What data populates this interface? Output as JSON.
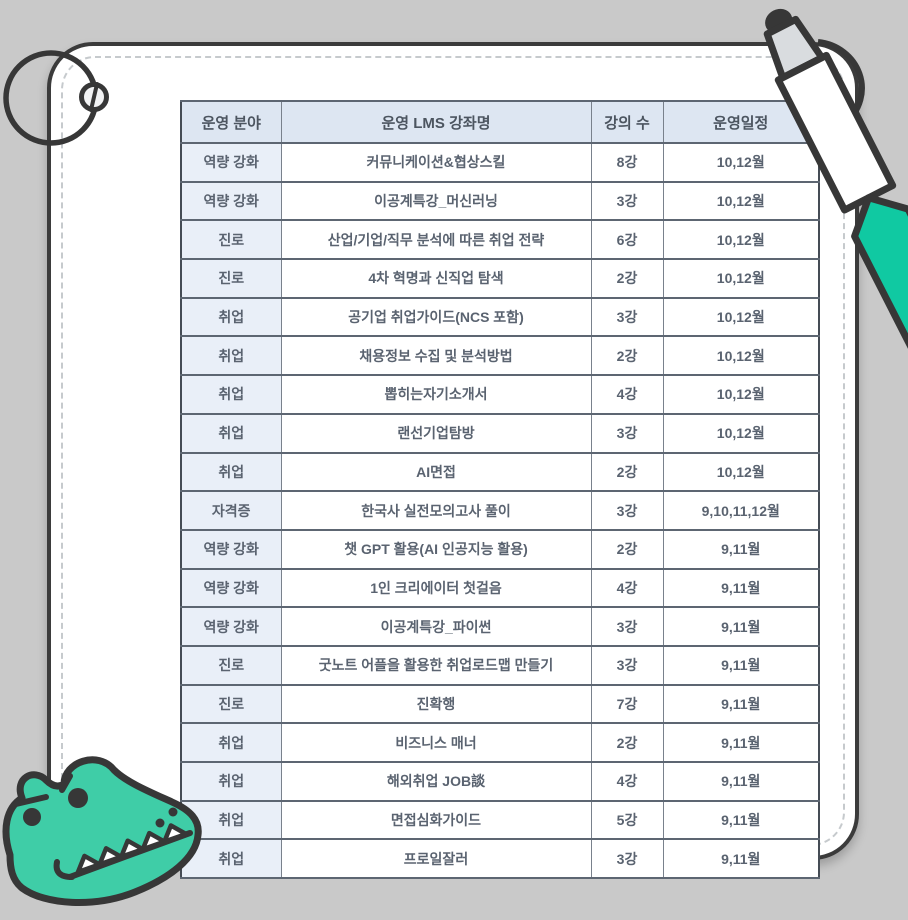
{
  "table": {
    "headers": [
      "운영 분야",
      "운영 LMS 강좌명",
      "강의 수",
      "운영일정"
    ],
    "rows": [
      {
        "category": "역량 강화",
        "course": "커뮤니케이션&협상스킬",
        "lectures": "8강",
        "schedule": "10,12월"
      },
      {
        "category": "역량 강화",
        "course": "이공계특강_머신러닝",
        "lectures": "3강",
        "schedule": "10,12월"
      },
      {
        "category": "진로",
        "course": "산업/기업/직무 분석에 따른 취업 전략",
        "lectures": "6강",
        "schedule": "10,12월"
      },
      {
        "category": "진로",
        "course": "4차 혁명과 신직업 탐색",
        "lectures": "2강",
        "schedule": "10,12월"
      },
      {
        "category": "취업",
        "course": "공기업 취업가이드(NCS 포함)",
        "lectures": "3강",
        "schedule": "10,12월"
      },
      {
        "category": "취업",
        "course": "채용정보 수집 및 분석방법",
        "lectures": "2강",
        "schedule": "10,12월"
      },
      {
        "category": "취업",
        "course": "뽑히는자기소개서",
        "lectures": "4강",
        "schedule": "10,12월"
      },
      {
        "category": "취업",
        "course": "랜선기업탐방",
        "lectures": "3강",
        "schedule": "10,12월"
      },
      {
        "category": "취업",
        "course": "AI면접",
        "lectures": "2강",
        "schedule": "10,12월"
      },
      {
        "category": "자격증",
        "course": "한국사 실전모의고사 풀이",
        "lectures": "3강",
        "schedule": "9,10,11,12월"
      },
      {
        "category": "역량 강화",
        "course": "챗 GPT 활용(AI 인공지능 활용)",
        "lectures": "2강",
        "schedule": "9,11월"
      },
      {
        "category": "역량 강화",
        "course": "1인 크리에이터 첫걸음",
        "lectures": "4강",
        "schedule": "9,11월"
      },
      {
        "category": "역량 강화",
        "course": "이공계특강_파이썬",
        "lectures": "3강",
        "schedule": "9,11월"
      },
      {
        "category": "진로",
        "course": "굿노트 어플을 활용한 취업로드맵 만들기",
        "lectures": "3강",
        "schedule": "9,11월"
      },
      {
        "category": "진로",
        "course": "진확행",
        "lectures": "7강",
        "schedule": "9,11월"
      },
      {
        "category": "취업",
        "course": "비즈니스 매너",
        "lectures": "2강",
        "schedule": "9,11월"
      },
      {
        "category": "취업",
        "course": "해외취업 JOB談",
        "lectures": "4강",
        "schedule": "9,11월"
      },
      {
        "category": "취업",
        "course": "면접심화가이드",
        "lectures": "5강",
        "schedule": "9,11월"
      },
      {
        "category": "취업",
        "course": "프로일잘러",
        "lectures": "3강",
        "schedule": "9,11월"
      }
    ]
  },
  "colors": {
    "background": "#c9c9c9",
    "card_border": "#3b3b3b",
    "header_bg": "#dde6f2",
    "category_bg": "#e9eff8",
    "text": "#5a6370",
    "teal_accent": "#3fcda7",
    "pen_grip": "#10c9a2",
    "outline": "#373737"
  },
  "decorations": {
    "pen": "pen-illustration",
    "crocodile": "crocodile-illustration",
    "binder_ring": "binder-ring"
  }
}
